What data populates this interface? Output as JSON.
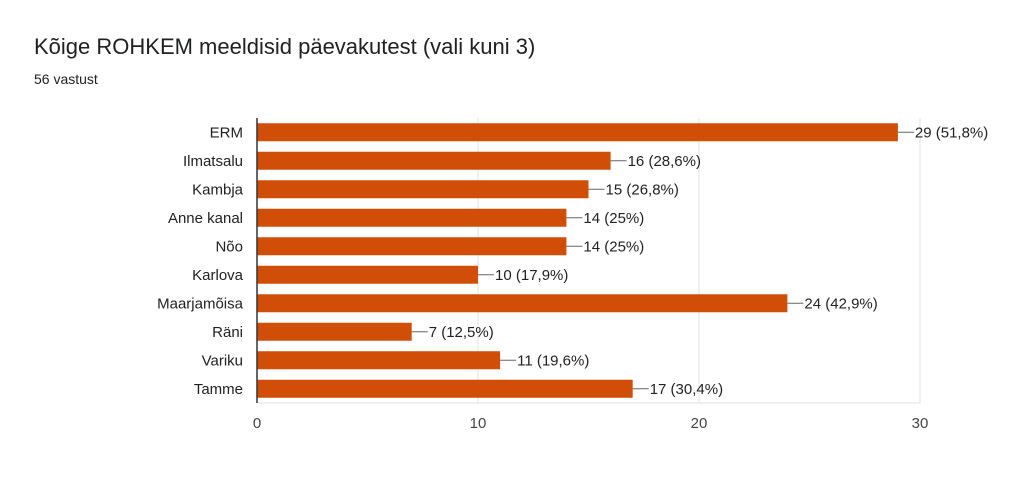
{
  "header": {
    "title": "Kõige ROHKEM meeldisid päevakutest (vali kuni 3)",
    "subtitle": "56 vastust"
  },
  "colors": {
    "bar": "#d04e07",
    "grid": "#e0e0e0",
    "axis": "#333333"
  },
  "chart_data": {
    "type": "bar",
    "orientation": "horizontal",
    "categories": [
      "ERM",
      "Ilmatsalu",
      "Kambja",
      "Anne kanal",
      "Nõo",
      "Karlova",
      "Maarjamõisa",
      "Räni",
      "Variku",
      "Tamme"
    ],
    "values": [
      29,
      16,
      15,
      14,
      14,
      10,
      24,
      7,
      11,
      17
    ],
    "value_labels": [
      "29 (51,8%)",
      "16 (28,6%)",
      "15 (26,8%)",
      "14 (25%)",
      "14 (25%)",
      "10 (17,9%)",
      "24 (42,9%)",
      "7 (12,5%)",
      "11 (19,6%)",
      "17 (30,4%)"
    ],
    "xlim": [
      0,
      30
    ],
    "xticks": [
      "0",
      "10",
      "20",
      "30"
    ],
    "grid": true
  }
}
